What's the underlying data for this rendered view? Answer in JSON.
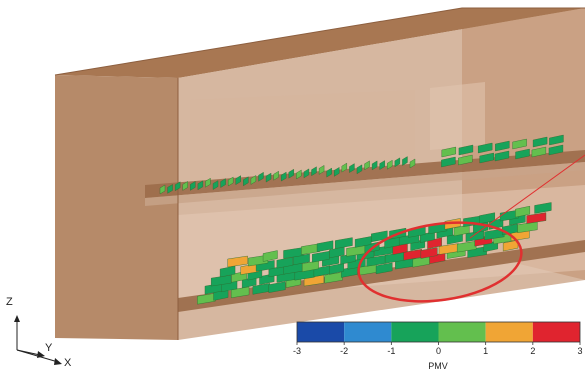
{
  "axes_triad": {
    "z_label": "Z",
    "y_label": "Y",
    "x_label": "X"
  },
  "colorbar": {
    "title": "PMV",
    "ticks": [
      "-3",
      "-2",
      "-1",
      "0",
      "1",
      "2",
      "3"
    ],
    "colors": [
      "#1a4aa8",
      "#2f8ad0",
      "#17a35a",
      "#63bf4e",
      "#f0a535",
      "#e0242f"
    ]
  },
  "palette": {
    "wall": "#b58460",
    "wall_dark": "#a0714f",
    "wall_light": "#d7b39a",
    "highlight_ellipse": "#e03030"
  }
}
